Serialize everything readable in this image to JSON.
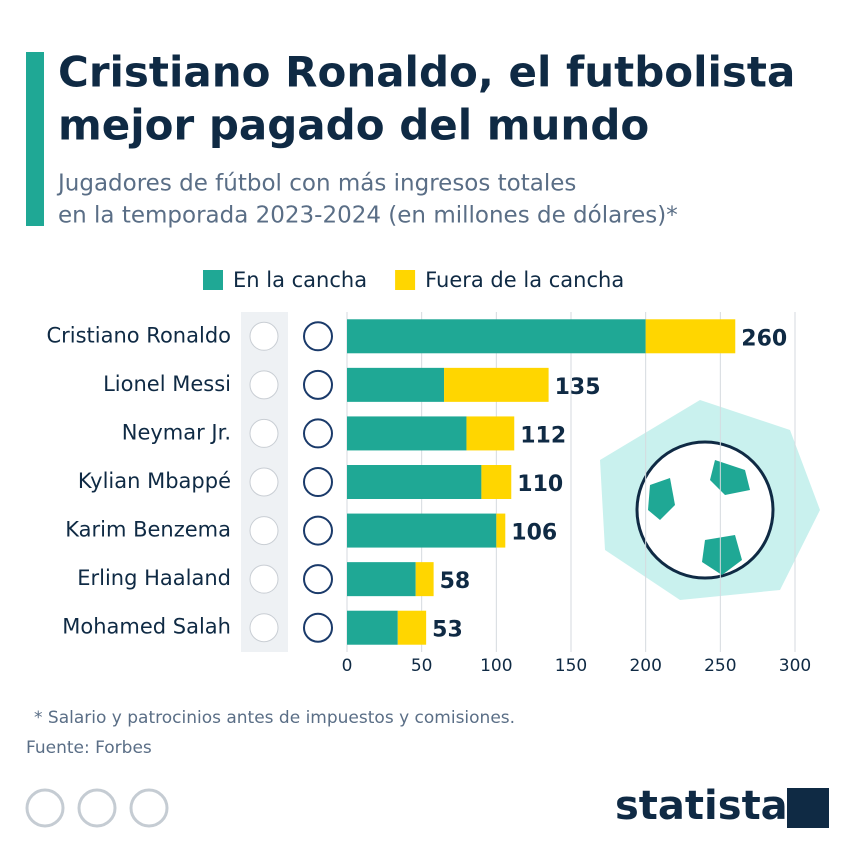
{
  "chart_data": {
    "type": "stacked-bar-horizontal",
    "title": [
      "Cristiano Ronaldo, el futbolista",
      "mejor pagado del mundo"
    ],
    "subtitle": [
      "Jugadores de fútbol con más ingresos totales",
      "en la temporada 2023-2024 (en millones de dólares)*"
    ],
    "categories": [
      "Cristiano Ronaldo",
      "Lionel Messi",
      "Neymar Jr.",
      "Kylian Mbappé",
      "Karim Benzema",
      "Erling Haaland",
      "Mohamed Salah"
    ],
    "series": [
      {
        "name": "En la cancha",
        "color": "#1fa895",
        "values": [
          200,
          65,
          80,
          90,
          100,
          46,
          34
        ]
      },
      {
        "name": "Fuera de la cancha",
        "color": "#ffd600",
        "values": [
          60,
          70,
          32,
          20,
          6,
          12,
          19
        ]
      }
    ],
    "totals": [
      260,
      135,
      112,
      110,
      106,
      58,
      53
    ],
    "xlim": [
      0,
      300
    ],
    "xticks": [
      0,
      50,
      100,
      150,
      200,
      250,
      300
    ],
    "grid": true,
    "footnote": "* Salario y patrocinios antes de impuestos y comisiones.",
    "source": "Fuente: Forbes",
    "brand": "statista"
  }
}
